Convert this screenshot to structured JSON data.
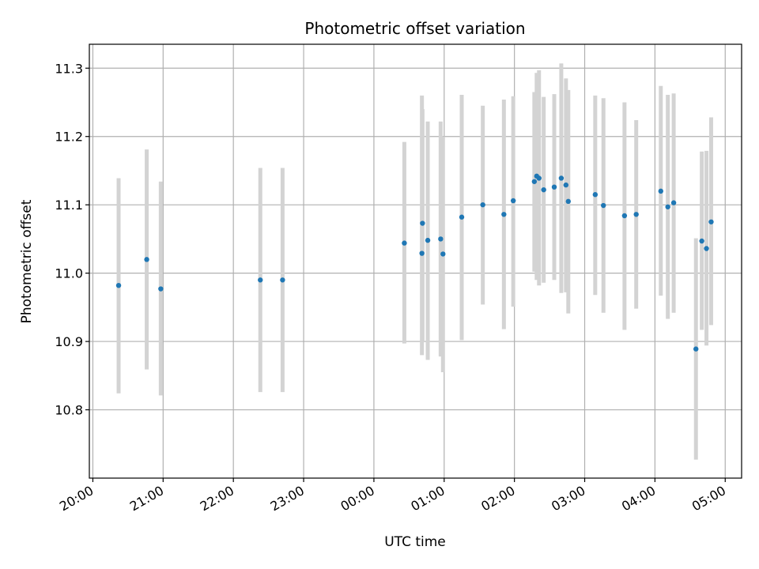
{
  "chart_data": {
    "type": "scatter",
    "title": "Photometric offset variation",
    "xlabel": "UTC time",
    "ylabel": "Photometric offset",
    "grid": true,
    "colors": {
      "marker": "#1f77b4",
      "errorbar": "#d3d3d3",
      "grid": "#b0b0b0"
    },
    "xlim": [
      "2000-01-01T19:57:00",
      "2000-01-02T05:14:00"
    ],
    "ylim": [
      10.7,
      11.335
    ],
    "x_ticks": [
      {
        "t": "2000-01-01T20:00:00",
        "label": "20:00"
      },
      {
        "t": "2000-01-01T21:00:00",
        "label": "21:00"
      },
      {
        "t": "2000-01-01T22:00:00",
        "label": "22:00"
      },
      {
        "t": "2000-01-01T23:00:00",
        "label": "23:00"
      },
      {
        "t": "2000-01-02T00:00:00",
        "label": "00:00"
      },
      {
        "t": "2000-01-02T01:00:00",
        "label": "01:00"
      },
      {
        "t": "2000-01-02T02:00:00",
        "label": "02:00"
      },
      {
        "t": "2000-01-02T03:00:00",
        "label": "03:00"
      },
      {
        "t": "2000-01-02T04:00:00",
        "label": "04:00"
      },
      {
        "t": "2000-01-02T05:00:00",
        "label": "05:00"
      }
    ],
    "y_ticks": [
      {
        "v": 10.8,
        "label": "10.8"
      },
      {
        "v": 10.9,
        "label": "10.9"
      },
      {
        "v": 11.0,
        "label": "11.0"
      },
      {
        "v": 11.1,
        "label": "11.1"
      },
      {
        "v": 11.2,
        "label": "11.2"
      },
      {
        "v": 11.3,
        "label": "11.3"
      }
    ],
    "points": [
      {
        "t": "2000-01-01T20:22:00",
        "y": 10.982,
        "err_low": 10.824,
        "err_high": 11.139
      },
      {
        "t": "2000-01-01T20:46:00",
        "y": 11.02,
        "err_low": 10.859,
        "err_high": 11.181
      },
      {
        "t": "2000-01-01T20:58:00",
        "y": 10.977,
        "err_low": 10.821,
        "err_high": 11.134
      },
      {
        "t": "2000-01-01T22:23:00",
        "y": 10.99,
        "err_low": 10.826,
        "err_high": 11.154
      },
      {
        "t": "2000-01-01T22:42:00",
        "y": 10.99,
        "err_low": 10.826,
        "err_high": 11.154
      },
      {
        "t": "2000-01-02T00:26:00",
        "y": 11.044,
        "err_low": 10.897,
        "err_high": 11.192
      },
      {
        "t": "2000-01-02T00:41:00",
        "y": 11.029,
        "err_low": 10.88,
        "err_high": 11.26
      },
      {
        "t": "2000-01-02T00:41:30",
        "y": 11.073,
        "err_low": 10.9,
        "err_high": 11.24
      },
      {
        "t": "2000-01-02T00:46:00",
        "y": 11.048,
        "err_low": 10.873,
        "err_high": 11.222
      },
      {
        "t": "2000-01-02T00:57:00",
        "y": 11.05,
        "err_low": 10.878,
        "err_high": 11.222
      },
      {
        "t": "2000-01-02T00:59:00",
        "y": 11.028,
        "err_low": 10.855,
        "err_high": 11.2
      },
      {
        "t": "2000-01-02T01:15:00",
        "y": 11.082,
        "err_low": 10.902,
        "err_high": 11.261
      },
      {
        "t": "2000-01-02T01:33:00",
        "y": 11.1,
        "err_low": 10.954,
        "err_high": 11.245
      },
      {
        "t": "2000-01-02T01:51:00",
        "y": 11.086,
        "err_low": 10.918,
        "err_high": 11.254
      },
      {
        "t": "2000-01-02T01:59:00",
        "y": 11.106,
        "err_low": 10.951,
        "err_high": 11.259
      },
      {
        "t": "2000-01-02T02:17:00",
        "y": 11.134,
        "err_low": 11.002,
        "err_high": 11.265
      },
      {
        "t": "2000-01-02T02:19:00",
        "y": 11.142,
        "err_low": 10.99,
        "err_high": 11.293
      },
      {
        "t": "2000-01-02T02:21:00",
        "y": 11.139,
        "err_low": 10.982,
        "err_high": 11.297
      },
      {
        "t": "2000-01-02T02:25:00",
        "y": 11.122,
        "err_low": 10.986,
        "err_high": 11.258
      },
      {
        "t": "2000-01-02T02:34:00",
        "y": 11.126,
        "err_low": 10.99,
        "err_high": 11.262
      },
      {
        "t": "2000-01-02T02:40:00",
        "y": 11.139,
        "err_low": 10.971,
        "err_high": 11.307
      },
      {
        "t": "2000-01-02T02:44:00",
        "y": 11.129,
        "err_low": 10.972,
        "err_high": 11.285
      },
      {
        "t": "2000-01-02T02:46:00",
        "y": 11.105,
        "err_low": 10.941,
        "err_high": 11.268
      },
      {
        "t": "2000-01-02T03:09:00",
        "y": 11.115,
        "err_low": 10.968,
        "err_high": 11.26
      },
      {
        "t": "2000-01-02T03:16:00",
        "y": 11.099,
        "err_low": 10.942,
        "err_high": 11.256
      },
      {
        "t": "2000-01-02T03:34:00",
        "y": 11.084,
        "err_low": 10.917,
        "err_high": 11.25
      },
      {
        "t": "2000-01-02T03:44:00",
        "y": 11.086,
        "err_low": 10.948,
        "err_high": 11.224
      },
      {
        "t": "2000-01-02T04:05:00",
        "y": 11.12,
        "err_low": 10.967,
        "err_high": 11.274
      },
      {
        "t": "2000-01-02T04:11:00",
        "y": 11.097,
        "err_low": 10.933,
        "err_high": 11.261
      },
      {
        "t": "2000-01-02T04:16:00",
        "y": 11.103,
        "err_low": 10.942,
        "err_high": 11.263
      },
      {
        "t": "2000-01-02T04:35:00",
        "y": 10.889,
        "err_low": 10.727,
        "err_high": 11.051
      },
      {
        "t": "2000-01-02T04:40:00",
        "y": 11.047,
        "err_low": 10.917,
        "err_high": 11.178
      },
      {
        "t": "2000-01-02T04:44:00",
        "y": 11.036,
        "err_low": 10.894,
        "err_high": 11.179
      },
      {
        "t": "2000-01-02T04:48:00",
        "y": 11.075,
        "err_low": 10.924,
        "err_high": 11.228
      }
    ]
  }
}
